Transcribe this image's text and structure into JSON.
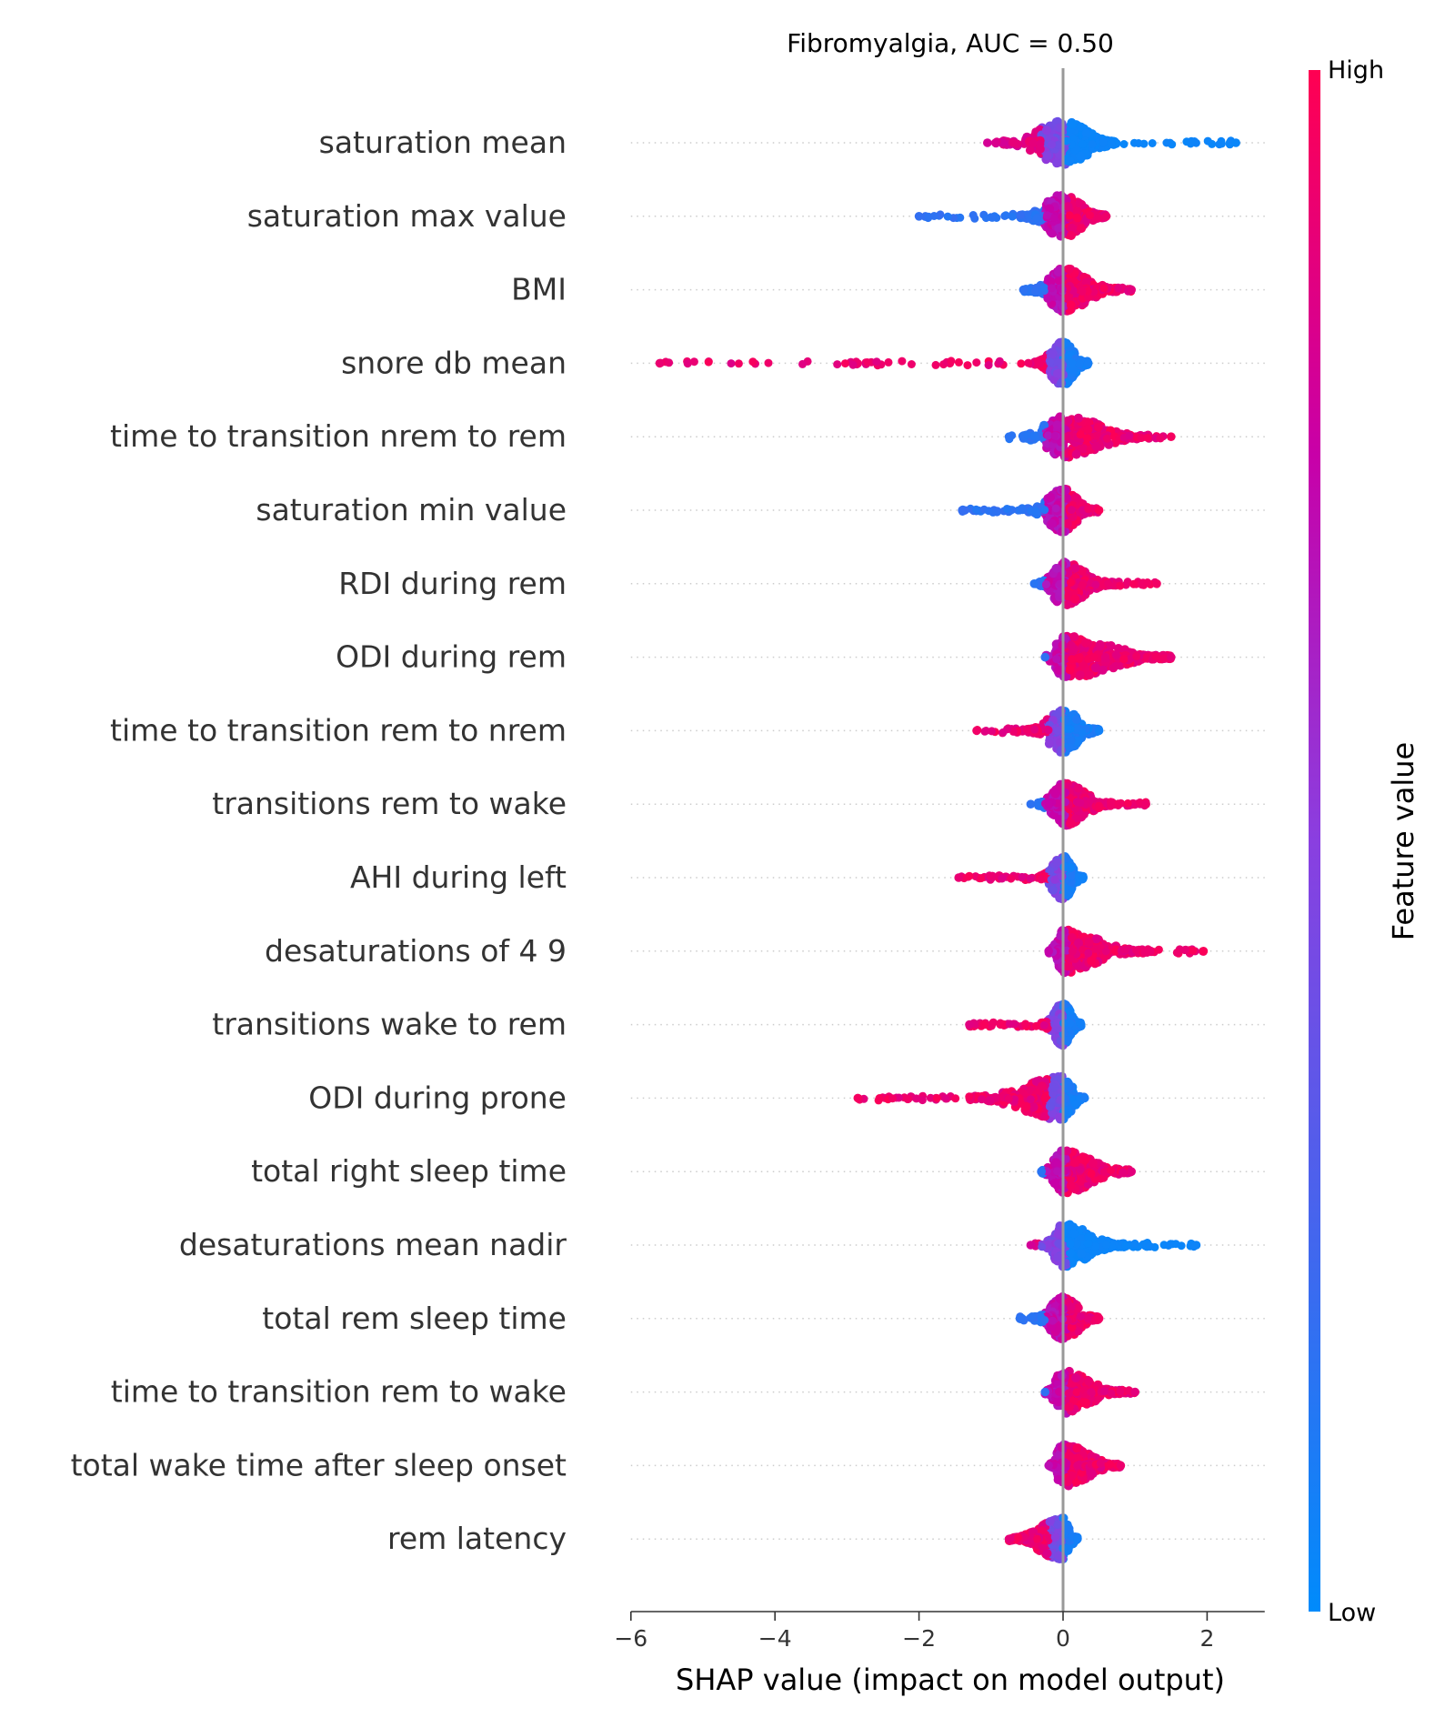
{
  "chart_data": {
    "type": "scatter",
    "subtype": "shap-beeswarm-summary",
    "title": "Fibromyalgia, AUC =  0.50",
    "xlabel": "SHAP value (impact on model output)",
    "xlim": [
      -6.0,
      2.8
    ],
    "xticks": [
      -6,
      -4,
      -2,
      0,
      2
    ],
    "xtick_labels": [
      "−6",
      "−4",
      "−2",
      "0",
      "2"
    ],
    "colorbar": {
      "label": "Feature value",
      "high_label": "High",
      "low_label": "Low",
      "high_color": "#ff0052",
      "low_color": "#008bfb"
    },
    "features": [
      {
        "name": "saturation mean",
        "min": -1.05,
        "max": 2.4,
        "core": [
          -0.85,
          0.8
        ],
        "mode": "blue_right"
      },
      {
        "name": "saturation max value",
        "min": -2.0,
        "max": 0.6,
        "core": [
          -0.6,
          0.6
        ],
        "mode": "red_right"
      },
      {
        "name": "BMI",
        "min": -0.55,
        "max": 0.95,
        "core": [
          -0.5,
          0.8
        ],
        "mode": "red_right"
      },
      {
        "name": "snore db mean",
        "min": -5.6,
        "max": 0.35,
        "core": [
          -0.4,
          0.35
        ],
        "mode": "red_left"
      },
      {
        "name": "time to transition nrem to rem",
        "min": -0.75,
        "max": 1.5,
        "core": [
          -0.6,
          1.2
        ],
        "mode": "red_right"
      },
      {
        "name": "saturation min value",
        "min": -1.4,
        "max": 0.5,
        "core": [
          -0.5,
          0.45
        ],
        "mode": "red_right"
      },
      {
        "name": "RDI during rem",
        "min": -0.4,
        "max": 1.3,
        "core": [
          -0.35,
          0.7
        ],
        "mode": "red_right"
      },
      {
        "name": "ODI during rem",
        "min": -0.25,
        "max": 1.5,
        "core": [
          -0.25,
          1.5
        ],
        "mode": "red_right"
      },
      {
        "name": "time to transition rem to nrem",
        "min": -1.2,
        "max": 0.5,
        "core": [
          -0.5,
          0.5
        ],
        "mode": "red_left"
      },
      {
        "name": "transitions rem to wake",
        "min": -0.45,
        "max": 1.15,
        "core": [
          -0.35,
          0.7
        ],
        "mode": "red_right"
      },
      {
        "name": "AHI during left",
        "min": -1.45,
        "max": 0.28,
        "core": [
          -0.35,
          0.28
        ],
        "mode": "red_left"
      },
      {
        "name": "desaturations of 4 9",
        "min": -0.2,
        "max": 1.95,
        "core": [
          -0.2,
          1.1
        ],
        "mode": "red_right"
      },
      {
        "name": "transitions wake to rem",
        "min": -1.3,
        "max": 0.25,
        "core": [
          -0.3,
          0.25
        ],
        "mode": "red_left"
      },
      {
        "name": "ODI during prone",
        "min": -2.85,
        "max": 0.3,
        "core": [
          -1.3,
          0.3
        ],
        "mode": "red_left"
      },
      {
        "name": "total right sleep time",
        "min": -0.3,
        "max": 0.95,
        "core": [
          -0.3,
          0.95
        ],
        "mode": "red_right"
      },
      {
        "name": "desaturations mean nadir",
        "min": -0.45,
        "max": 1.85,
        "core": [
          -0.3,
          0.85
        ],
        "mode": "blue_right"
      },
      {
        "name": "total rem sleep time",
        "min": -0.6,
        "max": 0.5,
        "core": [
          -0.4,
          0.5
        ],
        "mode": "red_right"
      },
      {
        "name": "time to transition rem to wake",
        "min": -0.25,
        "max": 1.0,
        "core": [
          -0.25,
          0.85
        ],
        "mode": "red_right"
      },
      {
        "name": "total wake time after sleep onset",
        "min": -0.2,
        "max": 0.8,
        "core": [
          -0.2,
          0.8
        ],
        "mode": "red_right"
      },
      {
        "name": "rem latency",
        "min": -0.75,
        "max": 0.2,
        "core": [
          -0.75,
          0.2
        ],
        "mode": "red_left"
      }
    ]
  }
}
